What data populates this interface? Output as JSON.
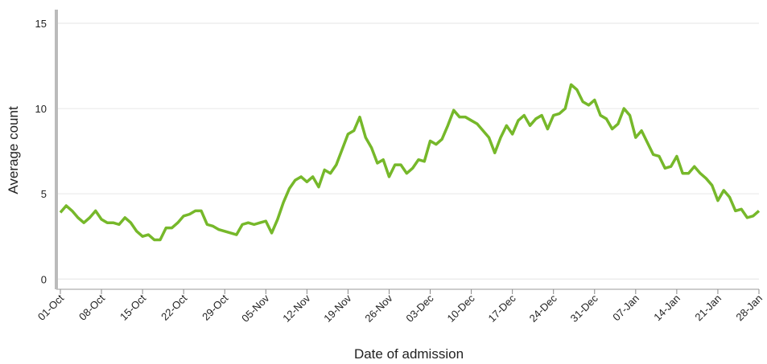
{
  "chart_data": {
    "type": "line",
    "x_label": "Date of admission",
    "y_label": "Average count",
    "categories": [
      "01-Oct",
      null,
      null,
      null,
      null,
      null,
      null,
      "08-Oct",
      null,
      null,
      null,
      null,
      null,
      null,
      "15-Oct",
      null,
      null,
      null,
      null,
      null,
      null,
      "22-Oct",
      null,
      null,
      null,
      null,
      null,
      null,
      "29-Oct",
      null,
      null,
      null,
      null,
      null,
      null,
      "05-Nov",
      null,
      null,
      null,
      null,
      null,
      null,
      "12-Nov",
      null,
      null,
      null,
      null,
      null,
      null,
      "19-Nov",
      null,
      null,
      null,
      null,
      null,
      null,
      "26-Nov",
      null,
      null,
      null,
      null,
      null,
      null,
      "03-Dec",
      null,
      null,
      null,
      null,
      null,
      null,
      "10-Dec",
      null,
      null,
      null,
      null,
      null,
      null,
      "17-Dec",
      null,
      null,
      null,
      null,
      null,
      null,
      "24-Dec",
      null,
      null,
      null,
      null,
      null,
      null,
      "31-Dec",
      null,
      null,
      null,
      null,
      null,
      null,
      "07-Jan",
      null,
      null,
      null,
      null,
      null,
      null,
      "14-Jan",
      null,
      null,
      null,
      null,
      null,
      null,
      "21-Jan",
      null,
      null,
      null,
      null,
      null,
      null,
      "28-Jan"
    ],
    "series": [
      {
        "color": "#76b82a",
        "values": [
          3.9,
          4.3,
          4.0,
          3.6,
          3.3,
          3.6,
          4.0,
          3.5,
          3.3,
          3.3,
          3.2,
          3.6,
          3.3,
          2.8,
          2.5,
          2.6,
          2.3,
          2.3,
          3.0,
          3.0,
          3.3,
          3.7,
          3.8,
          4.0,
          4.0,
          3.2,
          3.1,
          2.9,
          2.8,
          2.7,
          2.6,
          3.2,
          3.3,
          3.2,
          3.3,
          3.4,
          2.7,
          3.5,
          4.5,
          5.3,
          5.8,
          6.0,
          5.7,
          6.0,
          5.4,
          6.4,
          6.2,
          6.7,
          7.6,
          8.5,
          8.7,
          9.5,
          8.3,
          7.7,
          6.8,
          7.0,
          6.0,
          6.7,
          6.7,
          6.2,
          6.5,
          7.0,
          6.9,
          8.1,
          7.9,
          8.2,
          9.0,
          9.9,
          9.5,
          9.5,
          9.3,
          9.1,
          8.7,
          8.3,
          7.4,
          8.3,
          9.0,
          8.5,
          9.3,
          9.6,
          9.0,
          9.4,
          9.6,
          8.8,
          9.6,
          9.7,
          10.0,
          11.4,
          11.1,
          10.4,
          10.2,
          10.5,
          9.6,
          9.4,
          8.8,
          9.1,
          10.0,
          9.6,
          8.3,
          8.7,
          8.0,
          7.3,
          7.2,
          6.5,
          6.6,
          7.2,
          6.2,
          6.2,
          6.6,
          6.2,
          5.9,
          5.5,
          4.6,
          5.2,
          4.8,
          4.0,
          4.1,
          3.6,
          3.7,
          4.0
        ]
      }
    ],
    "ylim": [
      -0.6,
      15.8
    ],
    "yticks": [
      0,
      5,
      10,
      15
    ],
    "grid": true
  }
}
